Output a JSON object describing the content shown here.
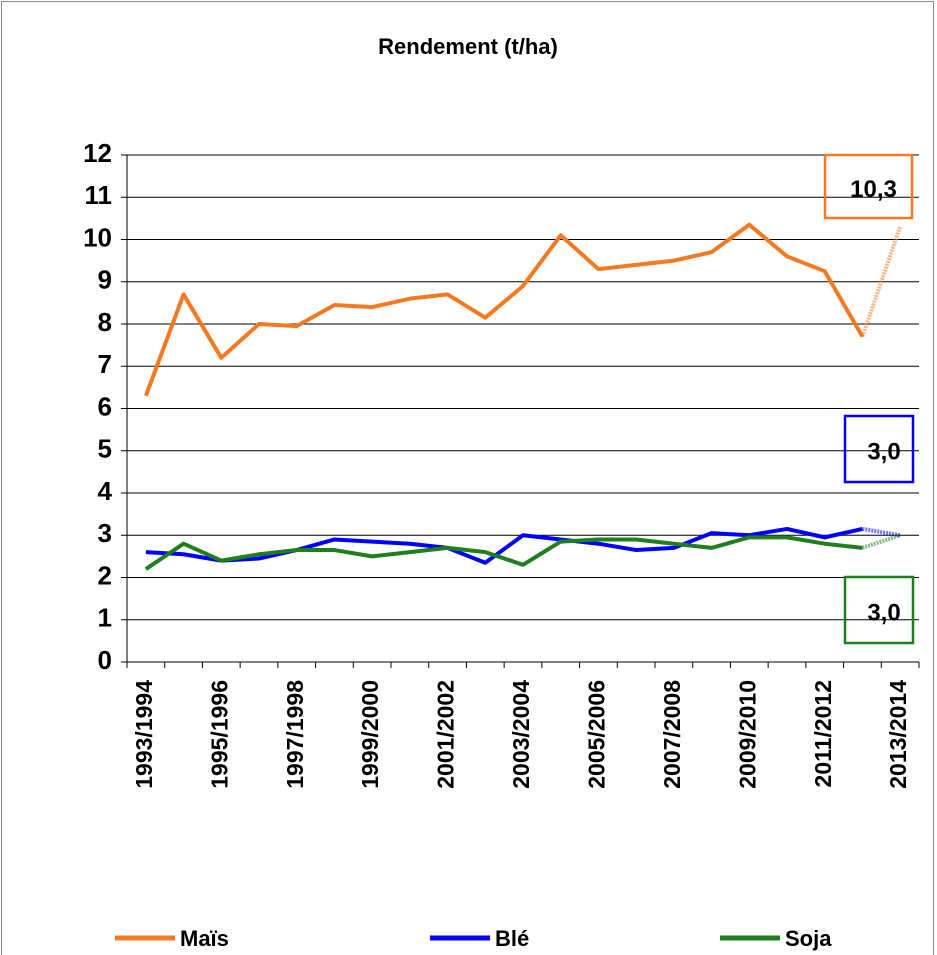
{
  "chart_data": {
    "type": "line",
    "title": "Rendement (t/ha)",
    "categories": [
      "1993/1994",
      null,
      "1995/1996",
      null,
      "1997/1998",
      null,
      "1999/2000",
      null,
      "2001/2002",
      null,
      "2003/2004",
      null,
      "2005/2006",
      null,
      "2007/2008",
      null,
      "2009/2010",
      null,
      "2011/2012",
      null,
      "2013/2014"
    ],
    "series": [
      {
        "name": "Maïs",
        "color": "#f47920",
        "values": [
          6.3,
          8.7,
          7.2,
          8.0,
          7.95,
          8.45,
          8.4,
          8.6,
          8.7,
          8.15,
          8.9,
          10.1,
          9.3,
          9.4,
          9.5,
          9.7,
          10.35,
          9.6,
          9.25,
          7.7,
          10.3
        ]
      },
      {
        "name": "Blé",
        "color": "#0000ff",
        "values": [
          2.6,
          2.55,
          2.4,
          2.45,
          2.65,
          2.9,
          2.85,
          2.8,
          2.7,
          2.35,
          3.0,
          2.9,
          2.8,
          2.65,
          2.7,
          3.05,
          3.0,
          3.15,
          2.95,
          3.15,
          3.0
        ]
      },
      {
        "name": "Soja",
        "color": "#1f7f1f",
        "values": [
          2.2,
          2.8,
          2.4,
          2.55,
          2.65,
          2.65,
          2.5,
          2.6,
          2.7,
          2.6,
          2.3,
          2.85,
          2.9,
          2.9,
          2.8,
          2.7,
          2.95,
          2.95,
          2.8,
          2.7,
          3.0
        ]
      }
    ],
    "annotations": [
      {
        "text": "10,3",
        "color": "#f47920"
      },
      {
        "text": "3,0",
        "color": "#0000ff"
      },
      {
        "text": "3,0",
        "color": "#1f7f1f"
      }
    ],
    "ylim": [
      0,
      12
    ],
    "yticks": [
      0,
      1,
      2,
      3,
      4,
      5,
      6,
      7,
      8,
      9,
      10,
      11,
      12
    ],
    "grid": true,
    "legend": "bottom"
  }
}
